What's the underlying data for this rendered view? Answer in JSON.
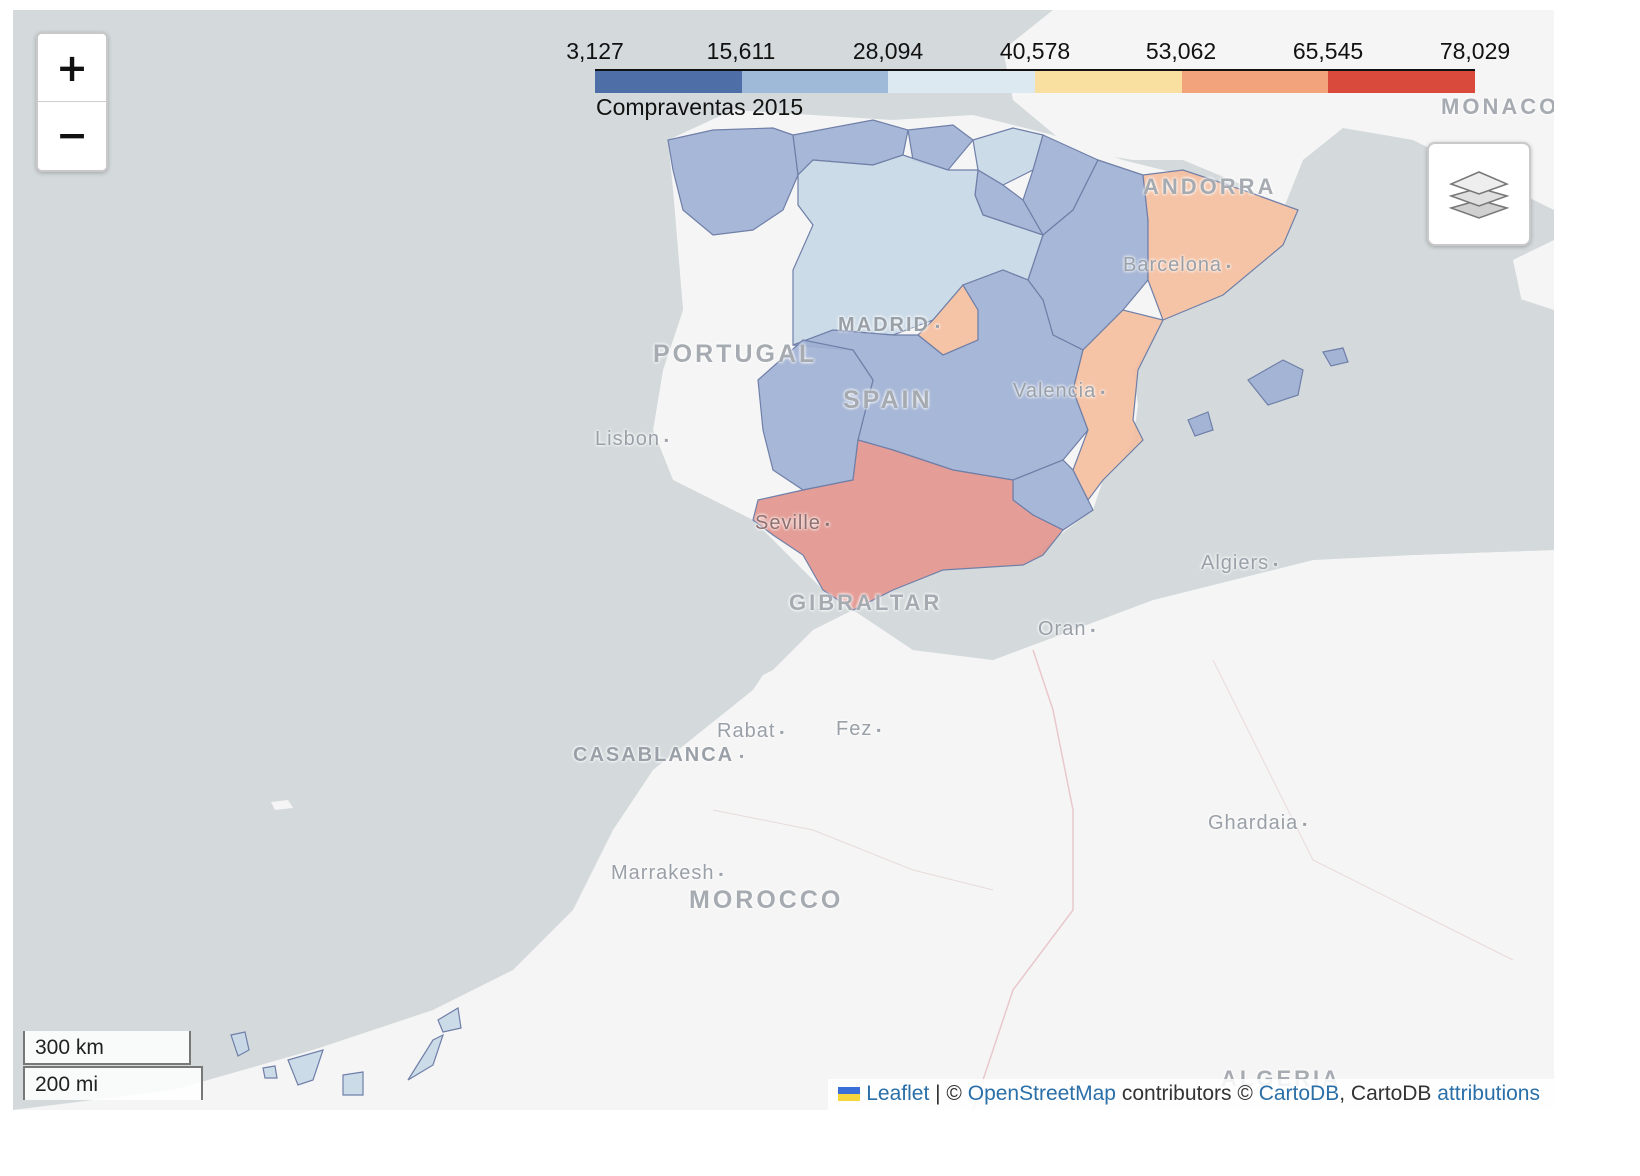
{
  "colors": {
    "sea": "#d4dadc",
    "land": "#f5f5f5",
    "legend_scale": [
      "#4e6ea8",
      "#9ebad8",
      "#dde9f0",
      "#f9dfa0",
      "#f2a37c",
      "#d94a3c"
    ],
    "low_region": "#9fb1d4",
    "lower_mid_region": "#c8d8e6",
    "mid_region": "#d7e4ee",
    "upper_mid_region": "#f4bfa0",
    "high_region": "#e2968e"
  },
  "legend": {
    "ticks": [
      "3,127",
      "15,611",
      "28,094",
      "40,578",
      "53,062",
      "65,545",
      "78,029"
    ],
    "title": "Compraventas 2015"
  },
  "map_labels": {
    "countries": [
      "PORTUGAL",
      "SPAIN",
      "MOROCCO",
      "ANDORRA",
      "GIBRALTAR",
      "MONACO",
      "ALGERIA"
    ],
    "cities": [
      "Lisbon",
      "Seville",
      "Barcelona",
      "Valencia",
      "Algiers",
      "Oran",
      "Rabat",
      "Fez",
      "Marrakesh",
      "Ghardaia"
    ],
    "capitals": [
      "MADRID",
      "CASABLANCA"
    ]
  },
  "controls": {
    "zoom_in": "+",
    "zoom_out": "−"
  },
  "scale": {
    "metric": "300 km",
    "imperial": "200 mi"
  },
  "attribution": {
    "leaflet": "Leaflet",
    "sep": " | © ",
    "osm": "OpenStreetMap",
    "contributors": " contributors © ",
    "cartodb": "CartoDB",
    "rest": ", CartoDB ",
    "attributions": "attributions"
  }
}
